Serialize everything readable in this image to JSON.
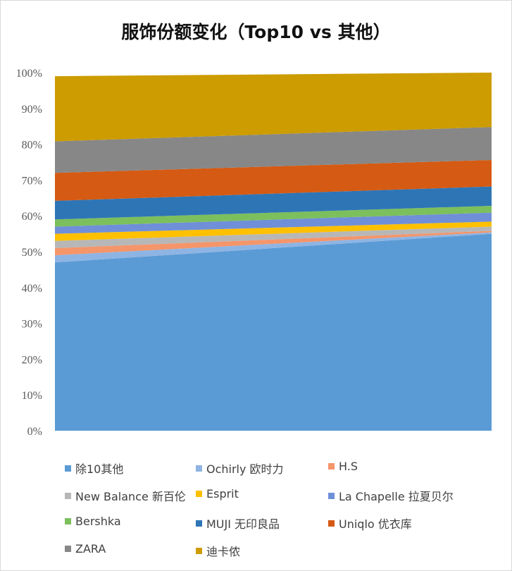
{
  "chart_data": {
    "type": "area",
    "stacked": true,
    "normalized": true,
    "title": "服饰份额变化（Top10 vs 其他）",
    "x": [
      "",
      ""
    ],
    "ylim": [
      0,
      100
    ],
    "yticks": [
      "0%",
      "10%",
      "20%",
      "30%",
      "40%",
      "50%",
      "60%",
      "70%",
      "80%",
      "90%",
      "100%"
    ],
    "grid": false,
    "legend_position": "bottom",
    "series": [
      {
        "name": "除10其他",
        "color": "#5B9BD5",
        "values": [
          47.0,
          55.0
        ]
      },
      {
        "name": "Ochirly 欧时力",
        "color": "#8EB4E3",
        "values": [
          2.0,
          0.4
        ]
      },
      {
        "name": "H.S",
        "color": "#F4956A",
        "values": [
          2.0,
          0.4
        ]
      },
      {
        "name": "New Balance 新百伦",
        "color": "#B7B7B7",
        "values": [
          2.0,
          1.2
        ]
      },
      {
        "name": "Esprit",
        "color": "#FFC000",
        "values": [
          2.0,
          1.4
        ]
      },
      {
        "name": "La Chapelle 拉夏贝尔",
        "color": "#6F8FD8",
        "values": [
          2.0,
          2.5
        ]
      },
      {
        "name": "Bershka",
        "color": "#7CBF5D",
        "values": [
          2.0,
          1.9
        ]
      },
      {
        "name": "MUJI 无印良品",
        "color": "#2E75B6",
        "values": [
          5.2,
          5.4
        ]
      },
      {
        "name": "Uniqlo 优衣库",
        "color": "#D55A13",
        "values": [
          7.8,
          7.4
        ]
      },
      {
        "name": "ZARA",
        "color": "#878787",
        "values": [
          8.8,
          9.2
        ]
      },
      {
        "name": "迪卡侬",
        "color": "#CC9C00",
        "values": [
          18.2,
          15.2
        ]
      }
    ]
  }
}
